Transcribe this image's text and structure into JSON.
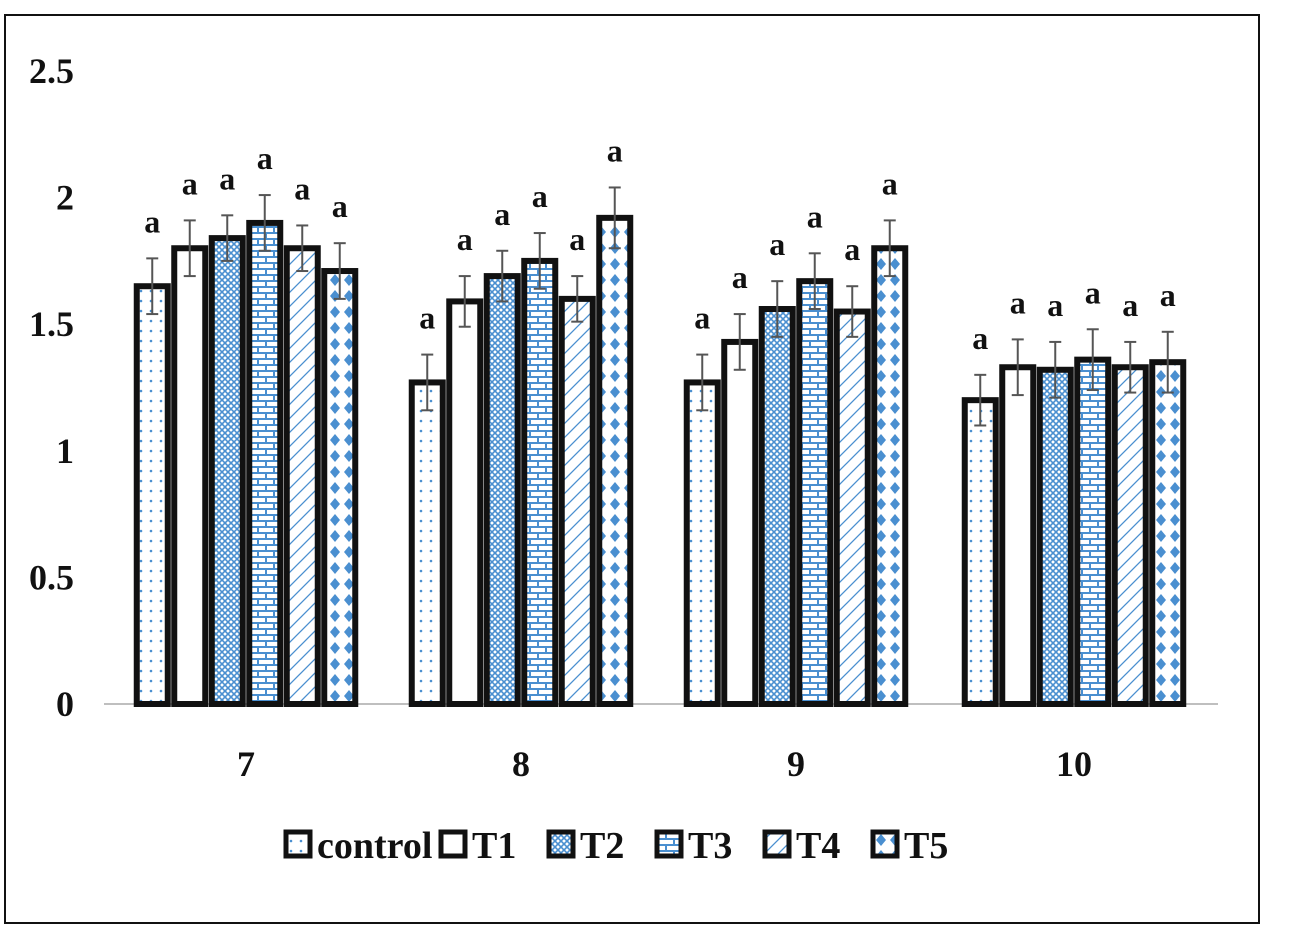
{
  "chart_data": {
    "type": "bar",
    "categories": [
      "7",
      "8",
      "9",
      "10"
    ],
    "ylim": [
      0,
      2.5
    ],
    "yticks": [
      "0",
      "0.5",
      "1",
      "1.5",
      "2",
      "2.5"
    ],
    "grid": false,
    "legend_position": "bottom",
    "series": [
      {
        "name": "control",
        "values": [
          1.65,
          1.27,
          1.27,
          1.2
        ],
        "errors": [
          0.11,
          0.11,
          0.11,
          0.1
        ],
        "labels": [
          "a",
          "a",
          "a",
          "a"
        ],
        "pattern": "dots",
        "color": "#4a8fd0"
      },
      {
        "name": "T1",
        "values": [
          1.8,
          1.59,
          1.43,
          1.33
        ],
        "errors": [
          0.11,
          0.1,
          0.11,
          0.11
        ],
        "labels": [
          "a",
          "a",
          "a",
          "a"
        ],
        "pattern": "plain",
        "color": "#ffffff"
      },
      {
        "name": "T2",
        "values": [
          1.84,
          1.69,
          1.56,
          1.32
        ],
        "errors": [
          0.09,
          0.1,
          0.11,
          0.11
        ],
        "labels": [
          "a",
          "a",
          "a",
          "a"
        ],
        "pattern": "cross",
        "color": "#4a8fd0"
      },
      {
        "name": "T3",
        "values": [
          1.9,
          1.75,
          1.67,
          1.36
        ],
        "errors": [
          0.11,
          0.11,
          0.11,
          0.12
        ],
        "labels": [
          "a",
          "a",
          "a",
          "a"
        ],
        "pattern": "brick",
        "color": "#4a8fd0"
      },
      {
        "name": "T4",
        "values": [
          1.8,
          1.6,
          1.55,
          1.33
        ],
        "errors": [
          0.09,
          0.09,
          0.1,
          0.1
        ],
        "labels": [
          "a",
          "a",
          "a",
          "a"
        ],
        "pattern": "diag",
        "color": "#4a8fd0"
      },
      {
        "name": "T5",
        "values": [
          1.71,
          1.92,
          1.8,
          1.35
        ],
        "errors": [
          0.11,
          0.12,
          0.11,
          0.12
        ],
        "labels": [
          "a",
          "a",
          "a",
          "a"
        ],
        "pattern": "diamond",
        "color": "#4a8fd0"
      }
    ]
  }
}
